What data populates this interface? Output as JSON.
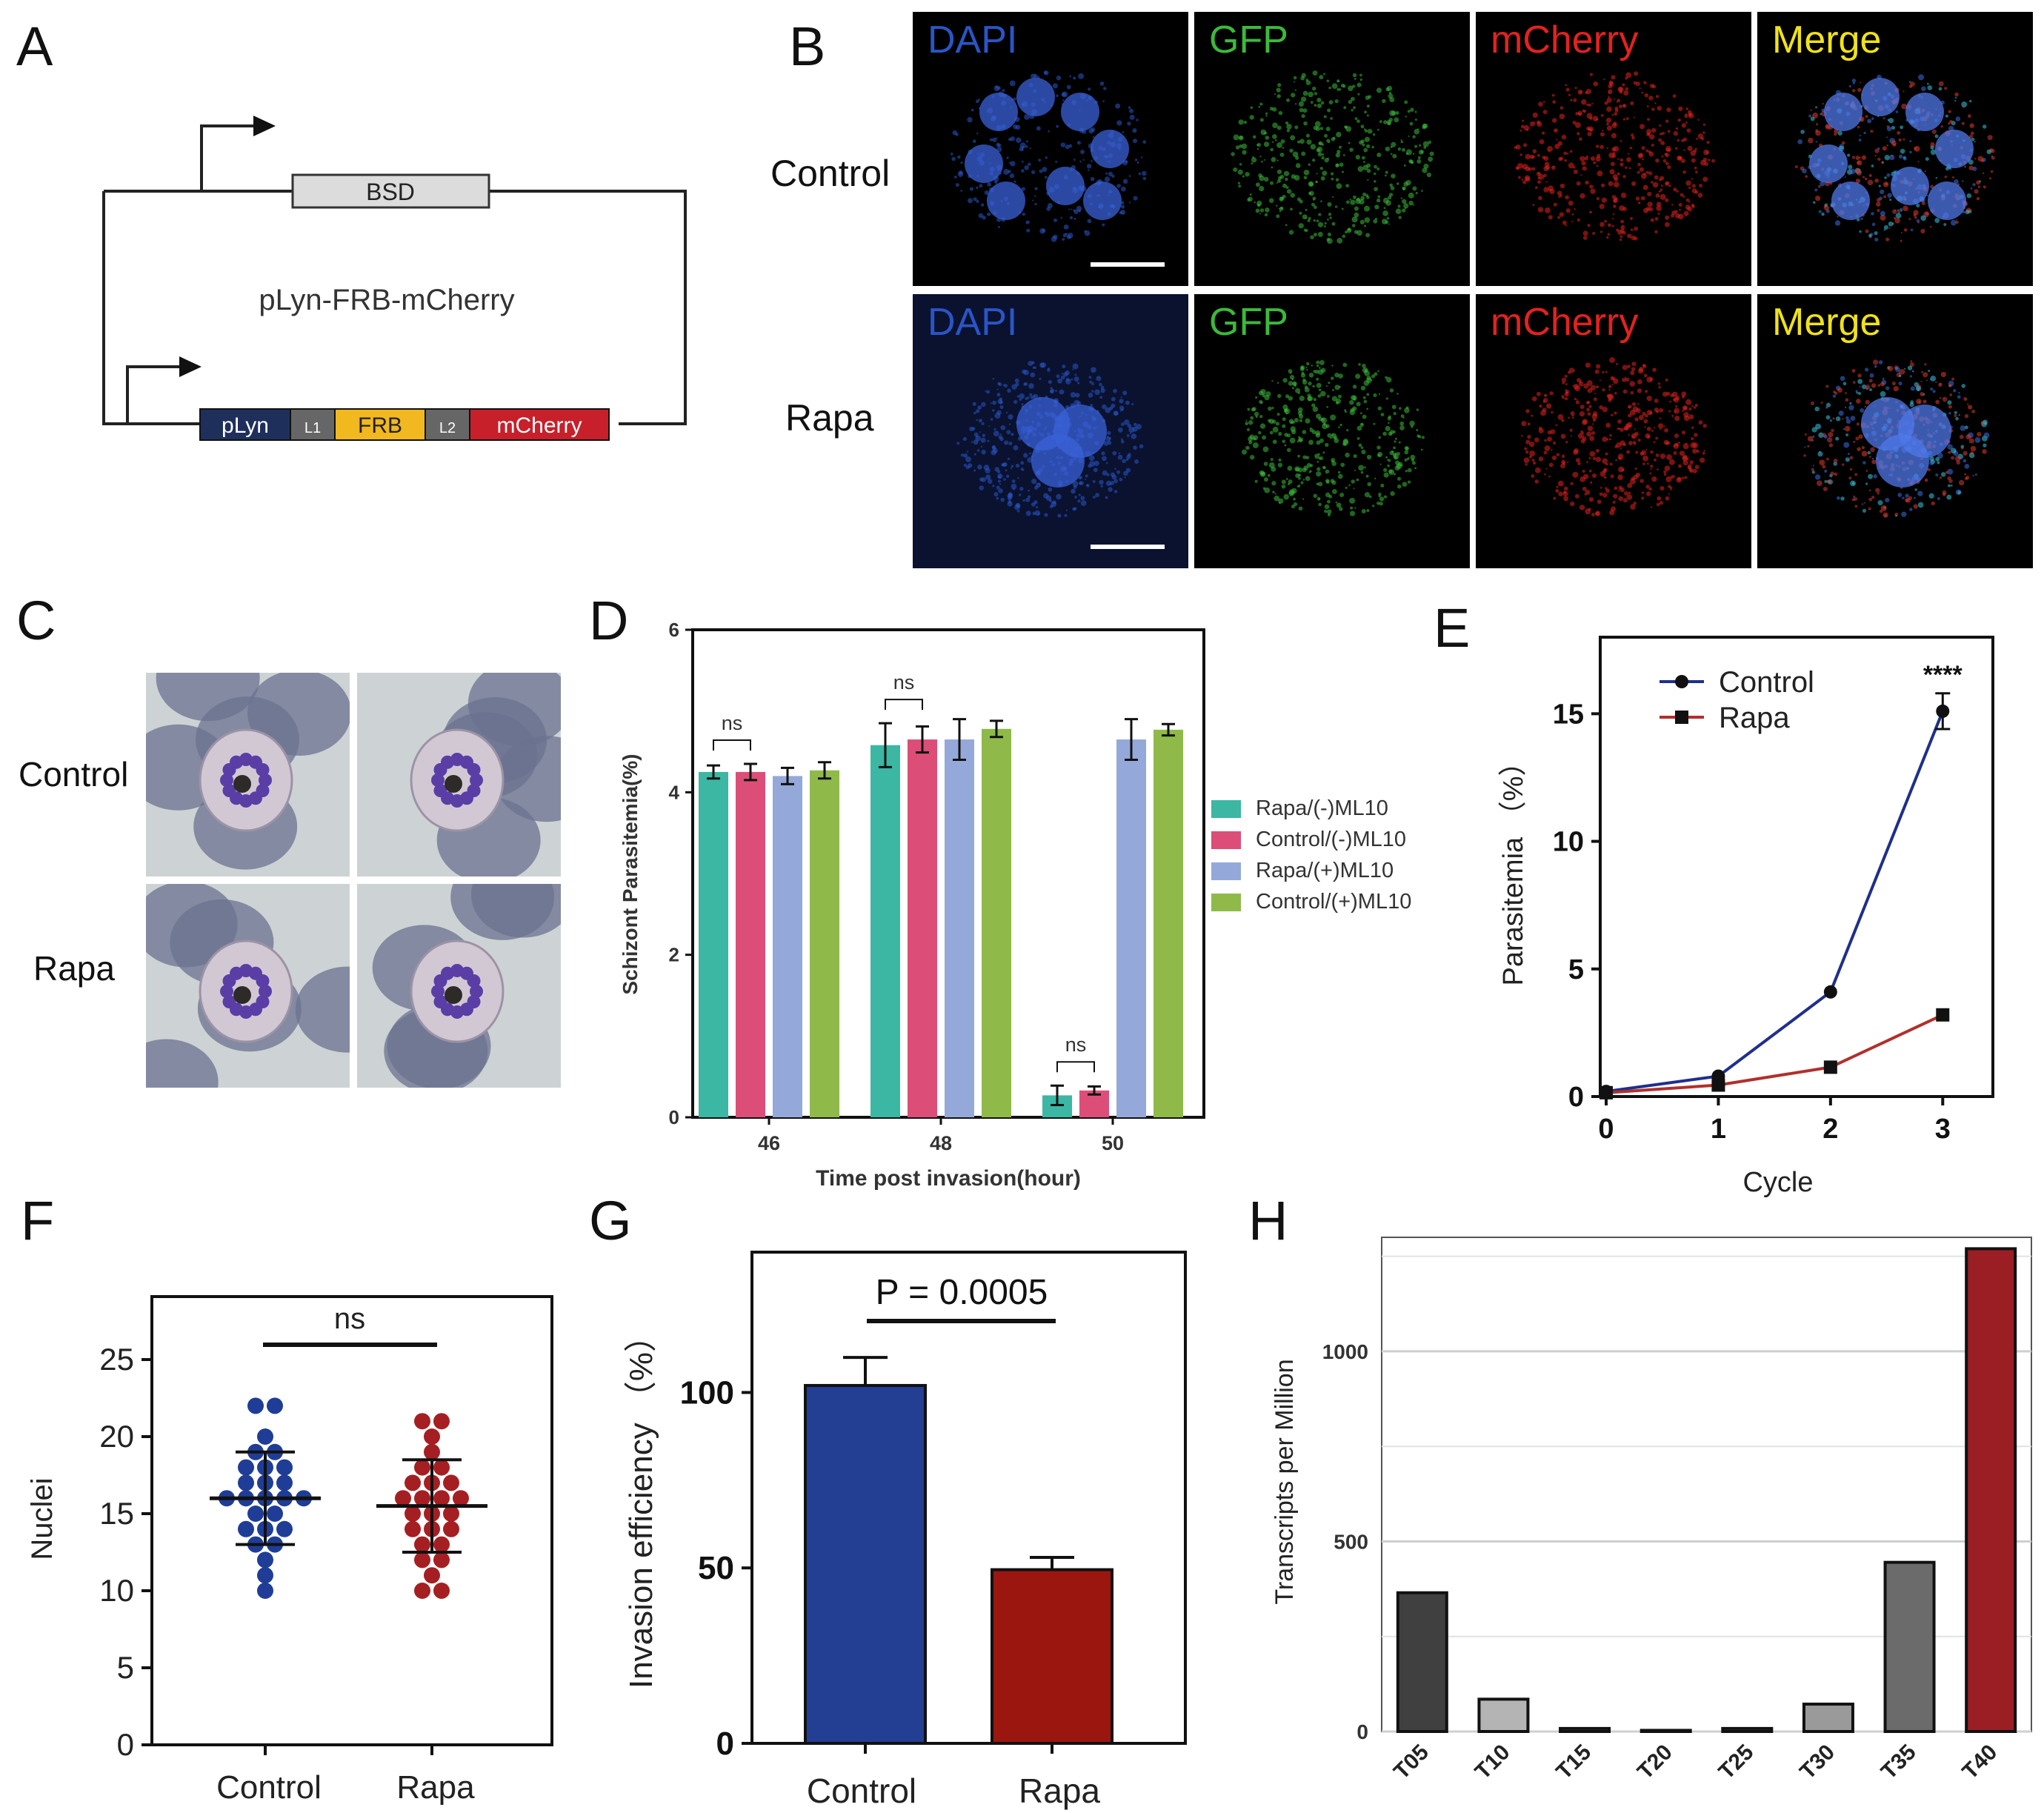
{
  "panels": {
    "A": {
      "letter": "A",
      "plasmid_name": "pLyn-FRB-mCherry",
      "bsd_label": "BSD",
      "segments": [
        {
          "label": "pLyn",
          "color": "#1f2f5c"
        },
        {
          "label": "L1",
          "color": "#666666"
        },
        {
          "label": "FRB",
          "color": "#f2b81f"
        },
        {
          "label": "L2",
          "color": "#666666"
        },
        {
          "label": "mCherry",
          "color": "#c7202a"
        }
      ]
    },
    "B": {
      "letter": "B",
      "rows": [
        "Control",
        "Rapa"
      ],
      "channels": [
        {
          "label": "DAPI",
          "color": "#2a55c6"
        },
        {
          "label": "GFP",
          "color": "#3cb93a"
        },
        {
          "label": "mCherry",
          "color": "#e2221f"
        },
        {
          "label": "Merge",
          "color": "#f0e21a"
        }
      ]
    },
    "C": {
      "letter": "C",
      "rows": [
        "Control",
        "Rapa"
      ]
    },
    "D": {
      "letter": "D",
      "legend": [
        "Rapa/(-)ML10",
        "Control/(-)ML10",
        "Rapa/(+)ML10",
        "Control/(+)ML10"
      ],
      "sig": [
        "ns",
        "ns",
        "ns"
      ]
    },
    "E": {
      "letter": "E",
      "sig": "****"
    },
    "F": {
      "letter": "F",
      "sig": "ns"
    },
    "G": {
      "letter": "G",
      "pvalue": "P = 0.0005"
    },
    "H": {
      "letter": "H"
    }
  },
  "chart_data": [
    {
      "panel": "D",
      "type": "bar",
      "categories": [
        "46",
        "48",
        "50"
      ],
      "xlabel": "Time post invasion(hour)",
      "ylabel": "Schizont Parasitemia(%)",
      "ylim": [
        0,
        6
      ],
      "yticks": [
        0,
        2,
        4,
        6
      ],
      "series": [
        {
          "name": "Rapa/(-)ML10",
          "color": "#3bb7a4",
          "values": [
            4.25,
            4.58,
            0.27
          ],
          "err": [
            0.08,
            0.27,
            0.12
          ]
        },
        {
          "name": "Control/(-)ML10",
          "color": "#dc4e78",
          "values": [
            4.25,
            4.65,
            0.33
          ],
          "err": [
            0.1,
            0.16,
            0.05
          ]
        },
        {
          "name": "Rapa/(+)ML10",
          "color": "#94a9d9",
          "values": [
            4.2,
            4.65,
            4.65
          ],
          "err": [
            0.1,
            0.25,
            0.25
          ]
        },
        {
          "name": "Control/(+)ML10",
          "color": "#8fba4a",
          "values": [
            4.27,
            4.78,
            4.77
          ],
          "err": [
            0.1,
            0.1,
            0.07
          ]
        }
      ]
    },
    {
      "panel": "E",
      "type": "line",
      "xlabel": "Cycle",
      "ylabel": "Parasitemia （%）",
      "x": [
        0,
        1,
        2,
        3
      ],
      "xlim": [
        0,
        3.5
      ],
      "ylim": [
        0,
        18
      ],
      "yticks": [
        0,
        5,
        10,
        15
      ],
      "series": [
        {
          "name": "Control",
          "color": "#1f2f8a",
          "marker": "circle",
          "values": [
            0.2,
            0.8,
            4.1,
            15.1
          ],
          "err": [
            0,
            0,
            0,
            0.7
          ]
        },
        {
          "name": "Rapa",
          "color": "#b0302c",
          "marker": "square",
          "values": [
            0.15,
            0.45,
            1.15,
            3.2
          ],
          "err": [
            0,
            0,
            0,
            0
          ]
        }
      ]
    },
    {
      "panel": "F",
      "type": "scatter",
      "ylabel": "Nuclei",
      "categories": [
        "Control",
        "Rapa"
      ],
      "ylim": [
        0,
        25
      ],
      "yticks": [
        0,
        5,
        10,
        15,
        20,
        25
      ],
      "series": [
        {
          "name": "Control",
          "color": "#1f3d96",
          "mean": 16,
          "sd": [
            13,
            19
          ],
          "values": [
            22,
            22,
            20,
            19,
            19,
            18,
            18,
            18,
            17,
            17,
            17,
            16,
            16,
            16,
            16,
            16,
            15,
            15,
            14,
            14,
            14,
            13,
            13,
            12,
            11,
            10
          ]
        },
        {
          "name": "Rapa",
          "color": "#a51f22",
          "mean": 15.5,
          "sd": [
            12.5,
            18.5
          ],
          "values": [
            21,
            21,
            20,
            19,
            18,
            18,
            17,
            17,
            17,
            16,
            16,
            16,
            16,
            15,
            15,
            15,
            14,
            14,
            14,
            13,
            13,
            12,
            12,
            11,
            10,
            10
          ]
        }
      ]
    },
    {
      "panel": "G",
      "type": "bar",
      "categories": [
        "Control",
        "Rapa"
      ],
      "ylabel": "Invasion efficiency （%）",
      "ylim": [
        0,
        140
      ],
      "yticks": [
        0,
        50,
        100
      ],
      "values": [
        102,
        49.5
      ],
      "err": [
        8,
        3.5
      ],
      "colors": [
        "#233f93",
        "#9c1610"
      ]
    },
    {
      "panel": "H",
      "type": "bar",
      "categories": [
        "T05",
        "T10",
        "T15",
        "T20",
        "T25",
        "T30",
        "T35",
        "T40"
      ],
      "ylabel": "Transcripts per Million",
      "ylim": [
        0,
        1300
      ],
      "yticks": [
        0,
        500,
        1000
      ],
      "values": [
        365,
        85,
        8,
        3,
        8,
        72,
        445,
        1270
      ],
      "colors": [
        "#404040",
        "#b4b4b4",
        "#a8a8a8",
        "#a8a8a8",
        "#a8a8a8",
        "#9a9a9a",
        "#6b6b6b",
        "#9a1e24"
      ]
    }
  ]
}
